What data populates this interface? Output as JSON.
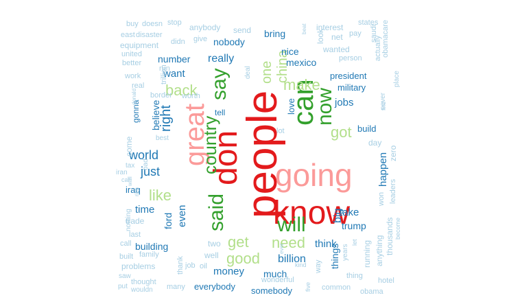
{
  "palette": {
    "dark-red": "#e31a1c",
    "pink": "#fb9a99",
    "dark-green": "#33a02c",
    "light-green": "#b2df8a",
    "dark-blue": "#1f78b4",
    "light-blue": "#a6cee3"
  },
  "words": [
    {
      "text": "people",
      "color": "dark-red"
    },
    {
      "text": "don",
      "color": "dark-red"
    },
    {
      "text": "know",
      "color": "dark-red"
    },
    {
      "text": "going",
      "color": "pink"
    },
    {
      "text": "great",
      "color": "pink"
    },
    {
      "text": "can",
      "color": "dark-green"
    },
    {
      "text": "said",
      "color": "dark-green"
    },
    {
      "text": "will",
      "color": "dark-green"
    },
    {
      "text": "country",
      "color": "dark-green"
    },
    {
      "text": "say",
      "color": "dark-green"
    },
    {
      "text": "now",
      "color": "dark-green"
    },
    {
      "text": "got",
      "color": "light-green"
    },
    {
      "text": "make",
      "color": "light-green"
    },
    {
      "text": "china",
      "color": "light-green"
    },
    {
      "text": "one",
      "color": "light-green"
    },
    {
      "text": "back",
      "color": "light-green"
    },
    {
      "text": "like",
      "color": "light-green"
    },
    {
      "text": "get",
      "color": "light-green"
    },
    {
      "text": "need",
      "color": "light-green"
    },
    {
      "text": "good",
      "color": "light-green"
    },
    {
      "text": "right",
      "color": "dark-blue"
    },
    {
      "text": "world",
      "color": "dark-blue"
    },
    {
      "text": "just",
      "color": "dark-blue"
    },
    {
      "text": "really",
      "color": "dark-blue"
    },
    {
      "text": "want",
      "color": "dark-blue"
    },
    {
      "text": "number",
      "color": "dark-blue"
    },
    {
      "text": "nobody",
      "color": "dark-blue"
    },
    {
      "text": "bring",
      "color": "dark-blue"
    },
    {
      "text": "nice",
      "color": "dark-blue"
    },
    {
      "text": "mexico",
      "color": "dark-blue"
    },
    {
      "text": "president",
      "color": "dark-blue"
    },
    {
      "text": "military",
      "color": "dark-blue"
    },
    {
      "text": "jobs",
      "color": "dark-blue"
    },
    {
      "text": "build",
      "color": "dark-blue"
    },
    {
      "text": "love",
      "color": "dark-blue"
    },
    {
      "text": "tell",
      "color": "dark-blue"
    },
    {
      "text": "believe",
      "color": "dark-blue"
    },
    {
      "text": "gonna",
      "color": "dark-blue"
    },
    {
      "text": "iraq",
      "color": "dark-blue"
    },
    {
      "text": "time",
      "color": "dark-blue"
    },
    {
      "text": "even",
      "color": "dark-blue"
    },
    {
      "text": "ford",
      "color": "dark-blue"
    },
    {
      "text": "building",
      "color": "dark-blue"
    },
    {
      "text": "money",
      "color": "dark-blue"
    },
    {
      "text": "much",
      "color": "dark-blue"
    },
    {
      "text": "billion",
      "color": "dark-blue"
    },
    {
      "text": "think",
      "color": "dark-blue"
    },
    {
      "text": "big",
      "color": "dark-blue"
    },
    {
      "text": "take",
      "color": "dark-blue"
    },
    {
      "text": "trump",
      "color": "dark-blue"
    },
    {
      "text": "happen",
      "color": "dark-blue"
    },
    {
      "text": "things",
      "color": "dark-blue"
    },
    {
      "text": "everybody",
      "color": "dark-blue"
    },
    {
      "text": "somebody",
      "color": "dark-blue"
    },
    {
      "text": "buy",
      "color": "light-blue"
    },
    {
      "text": "doesn",
      "color": "light-blue"
    },
    {
      "text": "stop",
      "color": "light-blue"
    },
    {
      "text": "anybody",
      "color": "light-blue"
    },
    {
      "text": "send",
      "color": "light-blue"
    },
    {
      "text": "interest",
      "color": "light-blue"
    },
    {
      "text": "states",
      "color": "light-blue"
    },
    {
      "text": "east",
      "color": "light-blue"
    },
    {
      "text": "disaster",
      "color": "light-blue"
    },
    {
      "text": "equipment",
      "color": "light-blue"
    },
    {
      "text": "didn",
      "color": "light-blue"
    },
    {
      "text": "give",
      "color": "light-blue"
    },
    {
      "text": "net",
      "color": "light-blue"
    },
    {
      "text": "pay",
      "color": "light-blue"
    },
    {
      "text": "saudi",
      "color": "light-blue"
    },
    {
      "text": "obamacare",
      "color": "light-blue"
    },
    {
      "text": "united",
      "color": "light-blue"
    },
    {
      "text": "better",
      "color": "light-blue"
    },
    {
      "text": "run",
      "color": "light-blue"
    },
    {
      "text": "look",
      "color": "light-blue"
    },
    {
      "text": "beat",
      "color": "light-blue"
    },
    {
      "text": "wanted",
      "color": "light-blue"
    },
    {
      "text": "actually",
      "color": "light-blue"
    },
    {
      "text": "person",
      "color": "light-blue"
    },
    {
      "text": "work",
      "color": "light-blue"
    },
    {
      "text": "trillion",
      "color": "light-blue"
    },
    {
      "text": "real",
      "color": "light-blue"
    },
    {
      "text": "border",
      "color": "light-blue"
    },
    {
      "text": "worth",
      "color": "light-blue"
    },
    {
      "text": "deal",
      "color": "light-blue"
    },
    {
      "text": "place",
      "color": "light-blue"
    },
    {
      "text": "donald",
      "color": "light-blue"
    },
    {
      "text": "never",
      "color": "light-blue"
    },
    {
      "text": "find",
      "color": "light-blue"
    },
    {
      "text": "best",
      "color": "light-blue"
    },
    {
      "text": "lot",
      "color": "light-blue"
    },
    {
      "text": "day",
      "color": "light-blue"
    },
    {
      "text": "come",
      "color": "light-blue"
    },
    {
      "text": "tax",
      "color": "light-blue"
    },
    {
      "text": "iran",
      "color": "light-blue"
    },
    {
      "text": "car",
      "color": "light-blue"
    },
    {
      "text": "bad",
      "color": "light-blue"
    },
    {
      "text": "zero",
      "color": "light-blue"
    },
    {
      "text": "wall",
      "color": "light-blue"
    },
    {
      "text": "rich",
      "color": "light-blue"
    },
    {
      "text": "nothing",
      "color": "light-blue"
    },
    {
      "text": "trade",
      "color": "light-blue"
    },
    {
      "text": "last",
      "color": "light-blue"
    },
    {
      "text": "won",
      "color": "light-blue"
    },
    {
      "text": "leaders",
      "color": "light-blue"
    },
    {
      "text": "call",
      "color": "light-blue"
    },
    {
      "text": "two",
      "color": "light-blue"
    },
    {
      "text": "well",
      "color": "light-blue"
    },
    {
      "text": "ever",
      "color": "light-blue"
    },
    {
      "text": "let",
      "color": "light-blue"
    },
    {
      "text": "running",
      "color": "light-blue"
    },
    {
      "text": "anything",
      "color": "light-blue"
    },
    {
      "text": "thousands",
      "color": "light-blue"
    },
    {
      "text": "become",
      "color": "light-blue"
    },
    {
      "text": "built",
      "color": "light-blue"
    },
    {
      "text": "family",
      "color": "light-blue"
    },
    {
      "text": "problems",
      "color": "light-blue"
    },
    {
      "text": "thank",
      "color": "light-blue"
    },
    {
      "text": "job",
      "color": "light-blue"
    },
    {
      "text": "oil",
      "color": "light-blue"
    },
    {
      "text": "kind",
      "color": "light-blue"
    },
    {
      "text": "way",
      "color": "light-blue"
    },
    {
      "text": "years",
      "color": "light-blue"
    },
    {
      "text": "thing",
      "color": "light-blue"
    },
    {
      "text": "hotel",
      "color": "light-blue"
    },
    {
      "text": "saw",
      "color": "light-blue"
    },
    {
      "text": "thought",
      "color": "light-blue"
    },
    {
      "text": "put",
      "color": "light-blue"
    },
    {
      "text": "wouldn",
      "color": "light-blue"
    },
    {
      "text": "many",
      "color": "light-blue"
    },
    {
      "text": "wonderful",
      "color": "light-blue"
    },
    {
      "text": "five",
      "color": "light-blue"
    },
    {
      "text": "common",
      "color": "light-blue"
    },
    {
      "text": "obama",
      "color": "light-blue"
    }
  ]
}
